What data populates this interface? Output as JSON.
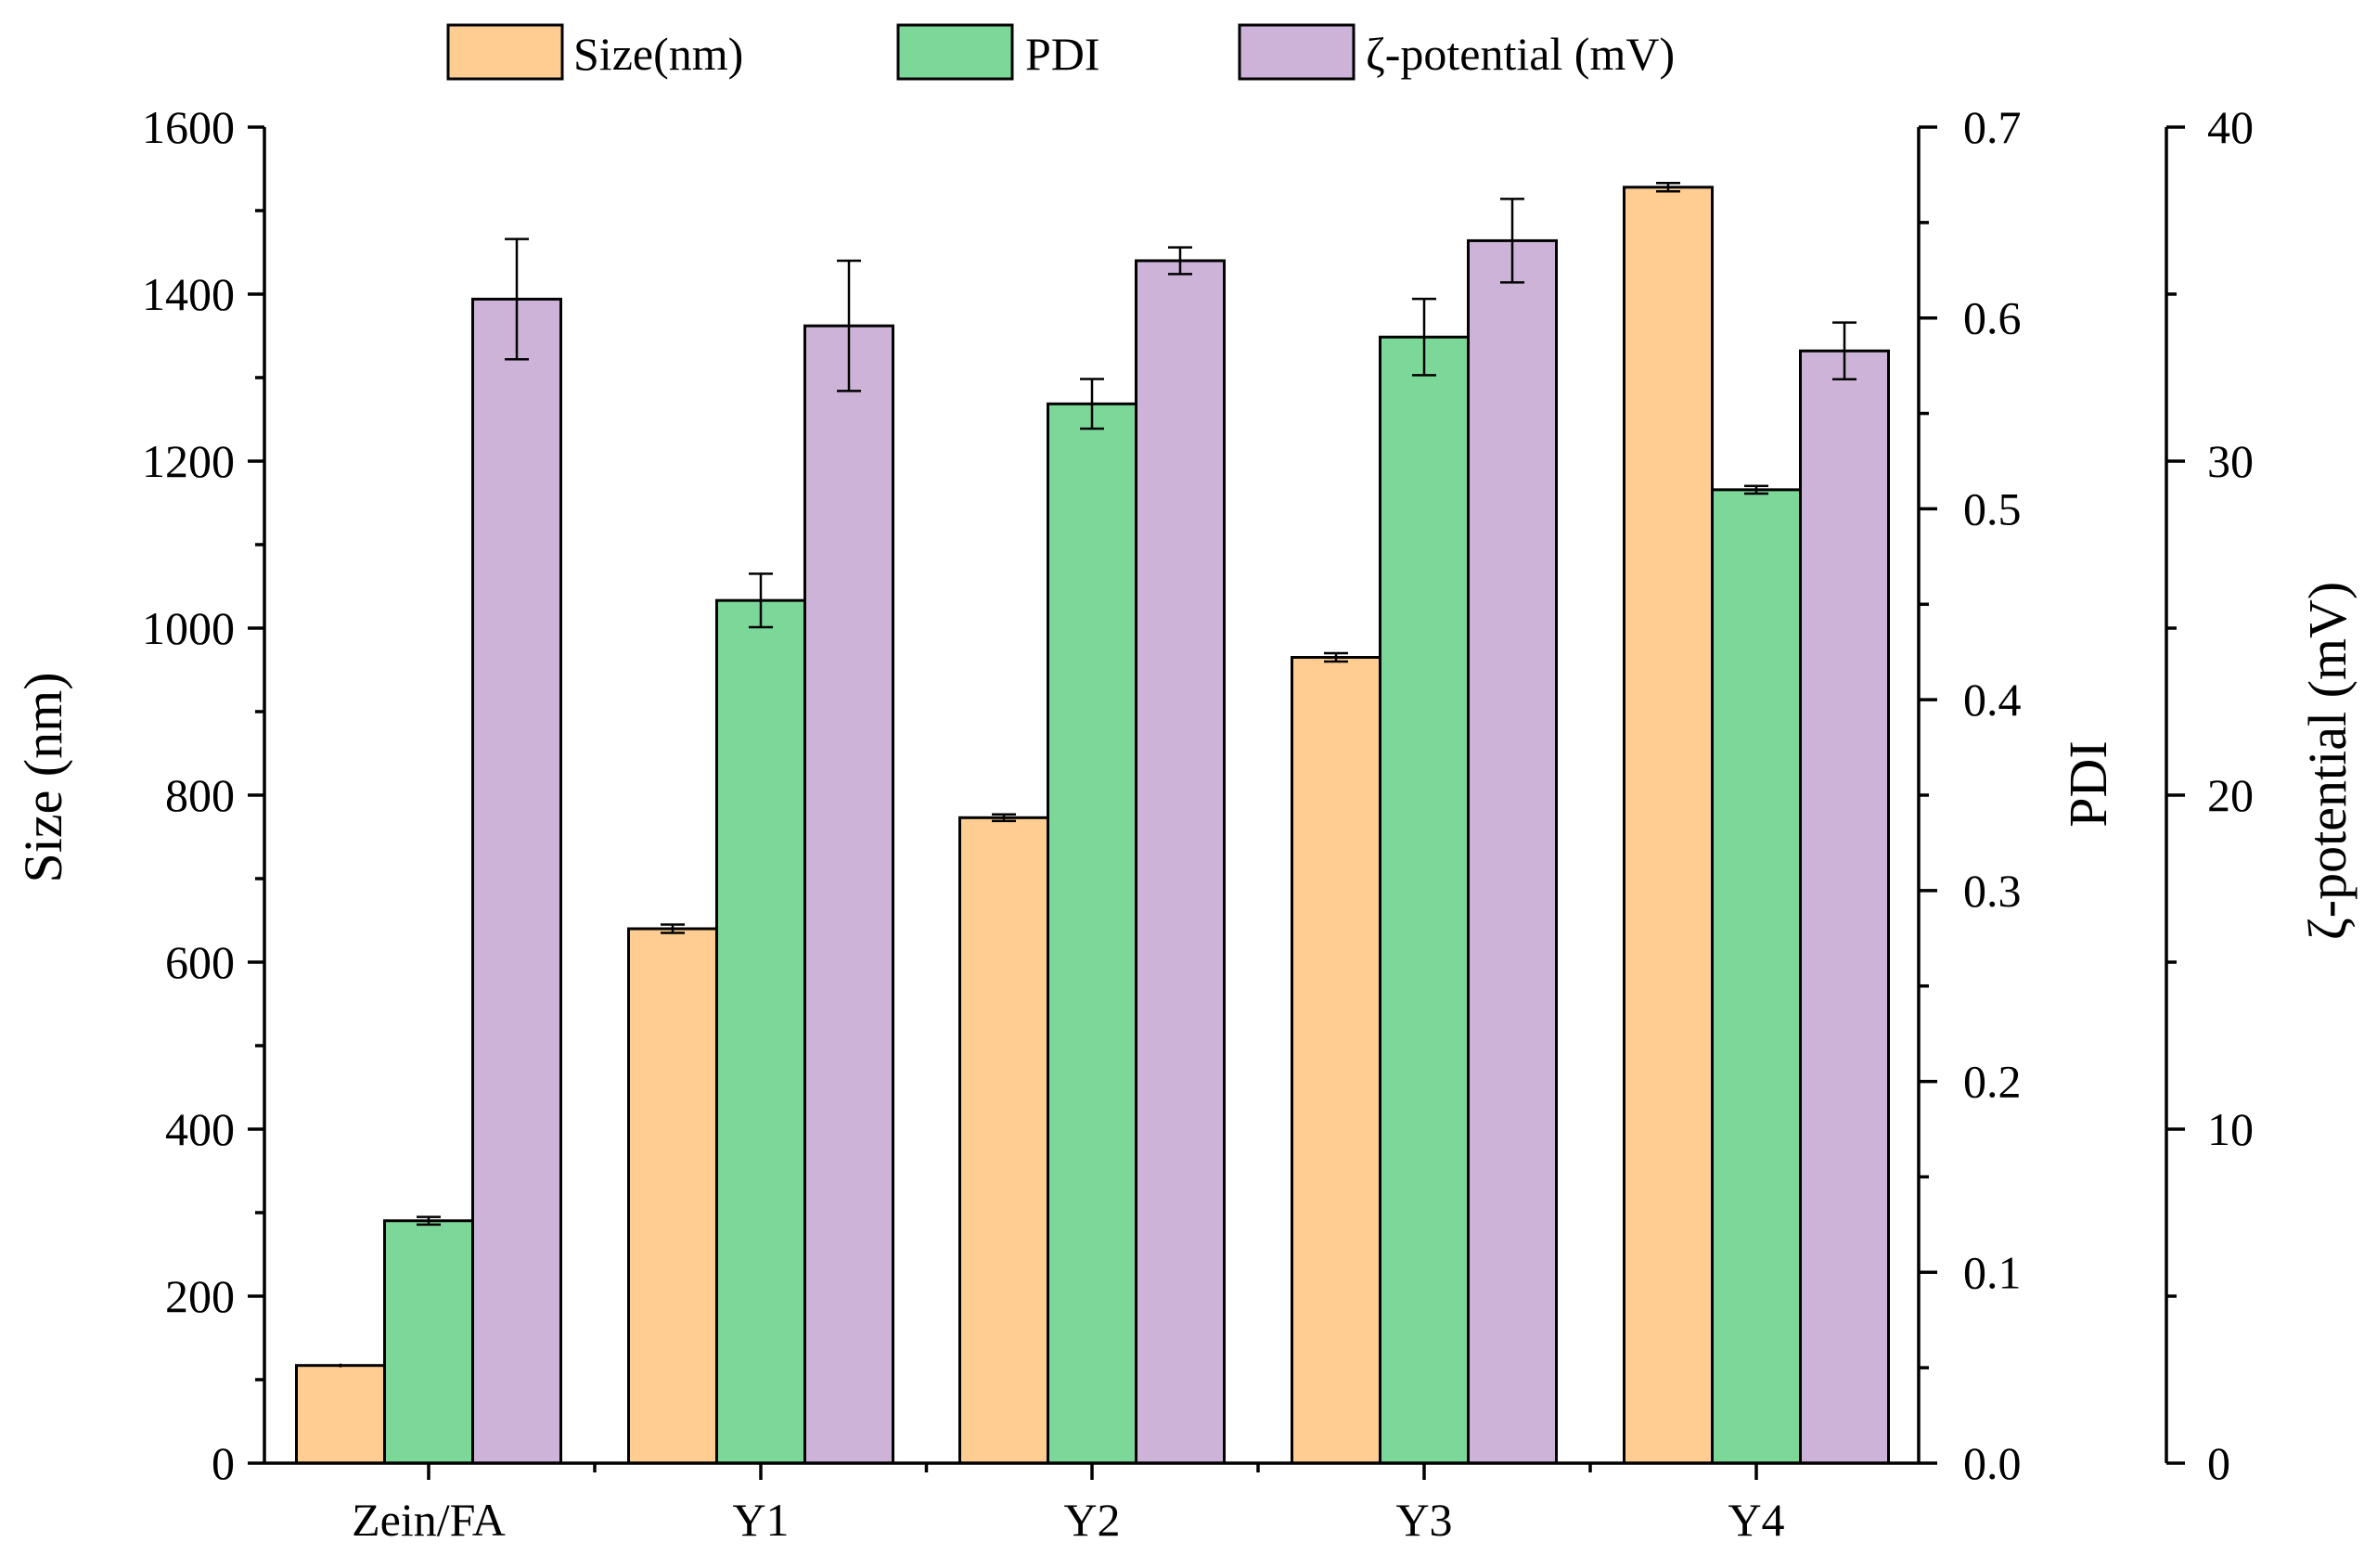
{
  "chart_data": {
    "type": "bar",
    "categories": [
      "Zein/FA",
      "Y1",
      "Y2",
      "Y3",
      "Y4"
    ],
    "series": [
      {
        "name": "Size(nm)",
        "axis": "left",
        "color": "#FFCD91",
        "values": [
          117,
          640,
          773,
          965,
          1528
        ],
        "errors": [
          0,
          5,
          4,
          5,
          5
        ]
      },
      {
        "name": "PDI",
        "axis": "pdi",
        "color": "#7CD898",
        "values": [
          0.127,
          0.452,
          0.555,
          0.59,
          0.51
        ],
        "errors": [
          0.002,
          0.014,
          0.013,
          0.02,
          0.002
        ]
      },
      {
        "name": "ζ-potential (mV)",
        "axis": "zeta",
        "color": "#CDB3D8",
        "values": [
          34.85,
          34.05,
          36.0,
          36.6,
          33.3
        ],
        "errors": [
          1.8,
          1.95,
          0.4,
          1.25,
          0.85
        ]
      }
    ],
    "axes": {
      "left": {
        "label": "Size (nm)",
        "range": [
          0,
          1600
        ],
        "ticks": [
          0,
          200,
          400,
          600,
          800,
          1000,
          1200,
          1400,
          1600
        ],
        "tick_labels": [
          "0",
          "200",
          "400",
          "600",
          "800",
          "1000",
          "1200",
          "1400",
          "1600"
        ]
      },
      "pdi": {
        "label": "PDI",
        "range": [
          0,
          0.7
        ],
        "ticks": [
          0,
          0.1,
          0.2,
          0.3,
          0.4,
          0.5,
          0.6,
          0.7
        ],
        "tick_labels": [
          "0.0",
          "0.1",
          "0.2",
          "0.3",
          "0.4",
          "0.5",
          "0.6",
          "0.7"
        ]
      },
      "zeta": {
        "label": "ζ-potential (mV)",
        "range": [
          0,
          40
        ],
        "ticks": [
          0,
          10,
          20,
          30,
          40
        ],
        "tick_labels": [
          "0",
          "10",
          "20",
          "30",
          "40"
        ]
      }
    },
    "legend_position": "top",
    "grid": false
  }
}
